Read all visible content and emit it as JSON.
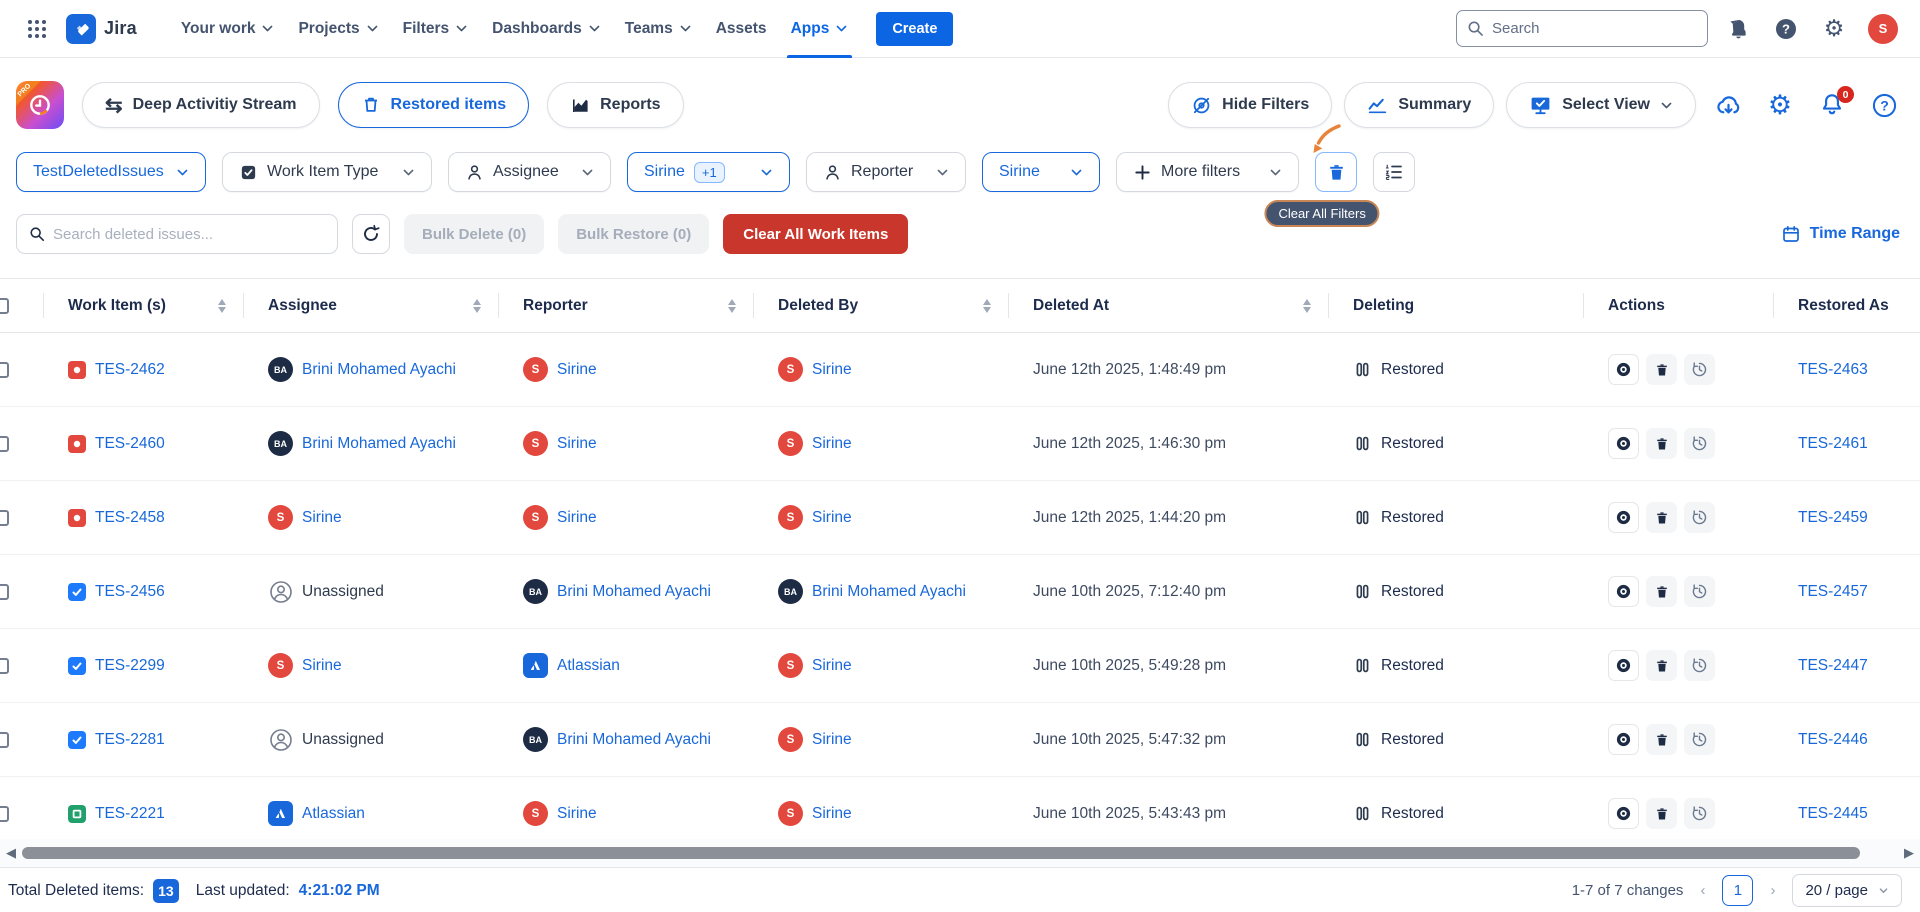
{
  "topnav": {
    "brand": "Jira",
    "nav_items": [
      {
        "label": "Your work",
        "chevron": true
      },
      {
        "label": "Projects",
        "chevron": true
      },
      {
        "label": "Filters",
        "chevron": true
      },
      {
        "label": "Dashboards",
        "chevron": true
      },
      {
        "label": "Teams",
        "chevron": true
      },
      {
        "label": "Assets",
        "chevron": false
      },
      {
        "label": "Apps",
        "chevron": true,
        "active": true
      }
    ],
    "create_label": "Create",
    "search_placeholder": "Search",
    "avatar_initial": "S"
  },
  "toolbar": {
    "pro_badge": "PRO",
    "left_buttons": [
      {
        "label": "Deep Activitiy Stream",
        "icon": "swap-arrows"
      },
      {
        "label": "Restored items",
        "icon": "trash-outline",
        "accent": true
      },
      {
        "label": "Reports",
        "icon": "bar-chart"
      }
    ],
    "right_buttons": [
      {
        "label": "Hide Filters",
        "icon": "eye-off"
      },
      {
        "label": "Summary",
        "icon": "line-chart"
      },
      {
        "label": "Select View",
        "icon": "monitor-check",
        "chevron": true
      }
    ],
    "bell_badge": "0"
  },
  "filters": {
    "pills": [
      {
        "label": "TestDeletedIssues",
        "style": "active",
        "minw": 190
      },
      {
        "label": "Work Item Type",
        "icon": "checkbox",
        "minw": 210
      },
      {
        "label": "Assignee",
        "icon": "person",
        "minw": 163
      },
      {
        "label": "Sirine",
        "badge": "+1",
        "style": "active",
        "minw": 163
      },
      {
        "label": "Reporter",
        "icon": "person",
        "minw": 160
      },
      {
        "label": "Sirine",
        "style": "active",
        "minw": 118
      },
      {
        "label": "More filters",
        "icon": "plus",
        "minw": 183
      }
    ],
    "tooltip": "Clear All Filters"
  },
  "actions_row": {
    "search_placeholder": "Search deleted issues...",
    "bulk_delete_label": "Bulk Delete (0)",
    "bulk_restore_label": "Bulk Restore (0)",
    "clear_all_label": "Clear All Work Items",
    "time_range_label": "Time Range"
  },
  "table": {
    "columns": [
      {
        "label": "Work Item (s)",
        "sortable": true
      },
      {
        "label": "Assignee",
        "sortable": true
      },
      {
        "label": "Reporter",
        "sortable": true
      },
      {
        "label": "Deleted By",
        "sortable": true
      },
      {
        "label": "Deleted At",
        "sortable": true
      },
      {
        "label": "Deleting",
        "sortable": false
      },
      {
        "label": "Actions",
        "sortable": false
      },
      {
        "label": "Restored As",
        "sortable": false
      }
    ],
    "rows": [
      {
        "key": "TES-2462",
        "type": "bug",
        "assignee": {
          "name": "Brini Mohamed Ayachi",
          "kind": "BA"
        },
        "reporter": {
          "name": "Sirine",
          "kind": "S"
        },
        "deleted_by": {
          "name": "Sirine",
          "kind": "S"
        },
        "deleted_at": "June 12th 2025, 1:48:49 pm",
        "status": "Restored",
        "restored_as": "TES-2463"
      },
      {
        "key": "TES-2460",
        "type": "bug",
        "assignee": {
          "name": "Brini Mohamed Ayachi",
          "kind": "BA"
        },
        "reporter": {
          "name": "Sirine",
          "kind": "S"
        },
        "deleted_by": {
          "name": "Sirine",
          "kind": "S"
        },
        "deleted_at": "June 12th 2025, 1:46:30 pm",
        "status": "Restored",
        "restored_as": "TES-2461"
      },
      {
        "key": "TES-2458",
        "type": "bug",
        "assignee": {
          "name": "Sirine",
          "kind": "S"
        },
        "reporter": {
          "name": "Sirine",
          "kind": "S"
        },
        "deleted_by": {
          "name": "Sirine",
          "kind": "S"
        },
        "deleted_at": "June 12th 2025, 1:44:20 pm",
        "status": "Restored",
        "restored_as": "TES-2459"
      },
      {
        "key": "TES-2456",
        "type": "task",
        "assignee": {
          "name": "Unassigned",
          "kind": "UN"
        },
        "reporter": {
          "name": "Brini Mohamed Ayachi",
          "kind": "BA"
        },
        "deleted_by": {
          "name": "Brini Mohamed Ayachi",
          "kind": "BA"
        },
        "deleted_at": "June 10th 2025, 7:12:40 pm",
        "status": "Restored",
        "restored_as": "TES-2457"
      },
      {
        "key": "TES-2299",
        "type": "task",
        "assignee": {
          "name": "Sirine",
          "kind": "S"
        },
        "reporter": {
          "name": "Atlassian",
          "kind": "ATL"
        },
        "deleted_by": {
          "name": "Sirine",
          "kind": "S"
        },
        "deleted_at": "June 10th 2025, 5:49:28 pm",
        "status": "Restored",
        "restored_as": "TES-2447"
      },
      {
        "key": "TES-2281",
        "type": "task",
        "assignee": {
          "name": "Unassigned",
          "kind": "UN"
        },
        "reporter": {
          "name": "Brini Mohamed Ayachi",
          "kind": "BA"
        },
        "deleted_by": {
          "name": "Sirine",
          "kind": "S"
        },
        "deleted_at": "June 10th 2025, 5:47:32 pm",
        "status": "Restored",
        "restored_as": "TES-2446"
      },
      {
        "key": "TES-2221",
        "type": "story",
        "assignee": {
          "name": "Atlassian",
          "kind": "ATL"
        },
        "reporter": {
          "name": "Sirine",
          "kind": "S"
        },
        "deleted_by": {
          "name": "Sirine",
          "kind": "S"
        },
        "deleted_at": "June 10th 2025, 5:43:43 pm",
        "status": "Restored",
        "restored_as": "TES-2445"
      }
    ]
  },
  "footer": {
    "total_label": "Total Deleted items:",
    "total_count": "13",
    "updated_label": "Last updated:",
    "updated_time": "4:21:02 PM",
    "range_text": "1-7 of 7 changes",
    "prev_glyph": "‹",
    "next_glyph": "›",
    "current_page": "1",
    "page_size": "20 / page"
  },
  "colors": {
    "accent_blue": "#1868DB",
    "create_blue": "#0C66E4",
    "danger_red": "#C9372C",
    "avatar_red": "#E2483D",
    "avatar_navy": "#1D2B45",
    "bug_red": "#E2483D",
    "task_blue": "#1D7AFC",
    "story_green": "#22A06B",
    "tooltip_bg": "#44546F",
    "tooltip_border": "#C78653",
    "annotation_orange": "#E8833A"
  }
}
